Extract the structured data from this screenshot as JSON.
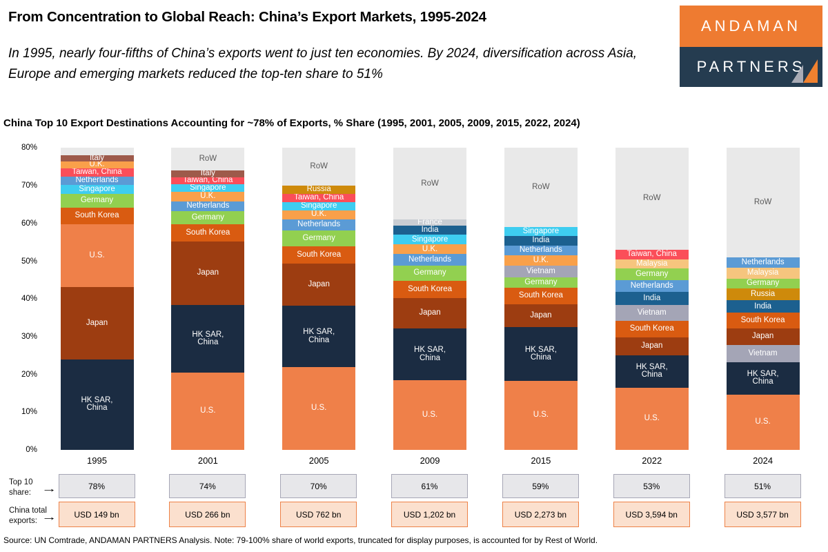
{
  "header": {
    "title": "From Concentration to Global Reach: China’s Export Markets, 1995-2024",
    "subtitle": "In 1995, nearly four-fifths of China’s exports went to just ten economies. By 2024, diversification across Asia, Europe and emerging markets reduced the top-ten share to 51%"
  },
  "logo": {
    "line1": "ANDAMAN",
    "line2": "PARTNERS"
  },
  "chart_title": "China Top 10 Export Destinations Accounting for ~78% of Exports, % Share (1995, 2001, 2005, 2009, 2015, 2022, 2024)",
  "annotations": {
    "top10_label": "Top 10\nshare:",
    "exports_label": "China total\nexports:",
    "arrow": "→"
  },
  "source": "Source: UN Comtrade, ANDAMAN PARTNERS Analysis. Note: 79-100% share of world exports, truncated for display purposes, is accounted for by Rest of World.",
  "chart_data": {
    "type": "stacked_bar",
    "title": "China Top 10 Export Destinations Accounting for ~78% of Exports, % Share (1995, 2001, 2005, 2009, 2015, 2022, 2024)",
    "unit": "% share of China total exports",
    "ylim": [
      0,
      80
    ],
    "yticks": [
      "0%",
      "10%",
      "20%",
      "30%",
      "40%",
      "50%",
      "60%",
      "70%",
      "80%"
    ],
    "truncated_at": 80,
    "grid": false,
    "stack_order": "bottom_to_top",
    "colors": {
      "U.S.": {
        "fill": "#EF8049",
        "text": "#FFFFFF"
      },
      "HK SAR, China": {
        "fill": "#1B2C42",
        "text": "#FFFFFF"
      },
      "Japan": {
        "fill": "#9D3D11",
        "text": "#FFFFFF"
      },
      "South Korea": {
        "fill": "#D95B11",
        "text": "#FFFFFF"
      },
      "Germany": {
        "fill": "#92D050",
        "text": "#FFFFFF"
      },
      "Singapore": {
        "fill": "#3ECDF0",
        "text": "#FFFFFF"
      },
      "Netherlands": {
        "fill": "#5B9BD5",
        "text": "#FFFFFF"
      },
      "Taiwan, China": {
        "fill": "#FB4E59",
        "text": "#FFFFFF"
      },
      "U.K.": {
        "fill": "#F9A04A",
        "text": "#FFFFFF"
      },
      "Italy": {
        "fill": "#9E5A4A",
        "text": "#FFFFFF"
      },
      "Russia": {
        "fill": "#CE8A0B",
        "text": "#FFFFFF"
      },
      "India": {
        "fill": "#1C608F",
        "text": "#FFFFFF"
      },
      "France": {
        "fill": "#C9CDD3",
        "text": "#FFFFFF"
      },
      "Vietnam": {
        "fill": "#A4A5B6",
        "text": "#FFFFFF"
      },
      "Malaysia": {
        "fill": "#F6C57E",
        "text": "#FFFFFF"
      },
      "RoW": {
        "fill": "#E9E9E9",
        "text": "#595959"
      }
    },
    "years": [
      {
        "year": "1995",
        "top10_share": "78%",
        "china_total_exports": "USD 149 bn",
        "stack": [
          {
            "market": "HK SAR, China",
            "share": 24.0,
            "label": "HK SAR,\nChina"
          },
          {
            "market": "Japan",
            "share": 19.1
          },
          {
            "market": "U.S.",
            "share": 16.6
          },
          {
            "market": "South Korea",
            "share": 4.5
          },
          {
            "market": "Germany",
            "share": 3.7
          },
          {
            "market": "Singapore",
            "share": 2.3
          },
          {
            "market": "Netherlands",
            "share": 2.2
          },
          {
            "market": "Taiwan, China",
            "share": 2.2
          },
          {
            "market": "U.K.",
            "share": 1.9
          },
          {
            "market": "Italy",
            "share": 1.5
          },
          {
            "market": "RoW",
            "share": 2.0,
            "label": ""
          }
        ]
      },
      {
        "year": "2001",
        "top10_share": "74%",
        "china_total_exports": "USD 266 bn",
        "stack": [
          {
            "market": "U.S.",
            "share": 20.4
          },
          {
            "market": "HK SAR, China",
            "share": 18.0,
            "label": "HK SAR,\nChina"
          },
          {
            "market": "Japan",
            "share": 16.8
          },
          {
            "market": "South Korea",
            "share": 4.6
          },
          {
            "market": "Germany",
            "share": 3.5
          },
          {
            "market": "Netherlands",
            "share": 2.6
          },
          {
            "market": "U.K.",
            "share": 2.4
          },
          {
            "market": "Singapore",
            "share": 2.1
          },
          {
            "market": "Taiwan, China",
            "share": 1.9
          },
          {
            "market": "Italy",
            "share": 1.7
          },
          {
            "market": "RoW",
            "share": 6.0
          }
        ]
      },
      {
        "year": "2005",
        "top10_share": "70%",
        "china_total_exports": "USD 762 bn",
        "stack": [
          {
            "market": "U.S.",
            "share": 21.9
          },
          {
            "market": "HK SAR, China",
            "share": 16.3,
            "label": "HK SAR,\nChina"
          },
          {
            "market": "Japan",
            "share": 11.1
          },
          {
            "market": "South Korea",
            "share": 4.6
          },
          {
            "market": "Germany",
            "share": 4.2
          },
          {
            "market": "Netherlands",
            "share": 3.0
          },
          {
            "market": "U.K.",
            "share": 2.4
          },
          {
            "market": "Singapore",
            "share": 2.2
          },
          {
            "market": "Taiwan, China",
            "share": 2.2
          },
          {
            "market": "Russia",
            "share": 2.1
          },
          {
            "market": "RoW",
            "share": 10.0
          }
        ]
      },
      {
        "year": "2009",
        "top10_share": "61%",
        "china_total_exports": "USD 1,202 bn",
        "stack": [
          {
            "market": "U.S.",
            "share": 18.4
          },
          {
            "market": "HK SAR, China",
            "share": 13.8,
            "label": "HK SAR,\nChina"
          },
          {
            "market": "Japan",
            "share": 8.0
          },
          {
            "market": "South Korea",
            "share": 4.6
          },
          {
            "market": "Germany",
            "share": 4.1
          },
          {
            "market": "Netherlands",
            "share": 3.0
          },
          {
            "market": "U.K.",
            "share": 2.5
          },
          {
            "market": "Singapore",
            "share": 2.6
          },
          {
            "market": "India",
            "share": 2.4
          },
          {
            "market": "France",
            "share": 1.6
          },
          {
            "market": "RoW",
            "share": 19.0
          }
        ]
      },
      {
        "year": "2015",
        "top10_share": "59%",
        "china_total_exports": "USD 2,273 bn",
        "stack": [
          {
            "market": "U.S.",
            "share": 18.2
          },
          {
            "market": "HK SAR, China",
            "share": 14.4,
            "label": "HK SAR,\nChina"
          },
          {
            "market": "Japan",
            "share": 6.0
          },
          {
            "market": "South Korea",
            "share": 4.3
          },
          {
            "market": "Germany",
            "share": 2.8
          },
          {
            "market": "Vietnam",
            "share": 3.1
          },
          {
            "market": "U.K.",
            "share": 2.8
          },
          {
            "market": "Netherlands",
            "share": 2.6
          },
          {
            "market": "India",
            "share": 2.5
          },
          {
            "market": "Singapore",
            "share": 2.3
          },
          {
            "market": "RoW",
            "share": 21.0
          }
        ]
      },
      {
        "year": "2022",
        "top10_share": "53%",
        "china_total_exports": "USD 3,594 bn",
        "stack": [
          {
            "market": "U.S.",
            "share": 16.4
          },
          {
            "market": "HK SAR, China",
            "share": 8.7,
            "label": "HK SAR,\nChina"
          },
          {
            "market": "Japan",
            "share": 4.7
          },
          {
            "market": "South Korea",
            "share": 4.4
          },
          {
            "market": "Vietnam",
            "share": 4.2
          },
          {
            "market": "India",
            "share": 3.4
          },
          {
            "market": "Netherlands",
            "share": 3.2
          },
          {
            "market": "Germany",
            "share": 3.0
          },
          {
            "market": "Malaysia",
            "share": 2.5
          },
          {
            "market": "Taiwan, China",
            "share": 2.5
          },
          {
            "market": "RoW",
            "share": 27.0
          }
        ]
      },
      {
        "year": "2024",
        "top10_share": "51%",
        "china_total_exports": "USD 3,577 bn",
        "stack": [
          {
            "market": "U.S.",
            "share": 14.7
          },
          {
            "market": "HK SAR, China",
            "share": 8.5,
            "label": "HK SAR,\nChina"
          },
          {
            "market": "Vietnam",
            "share": 4.6
          },
          {
            "market": "Japan",
            "share": 4.4
          },
          {
            "market": "South Korea",
            "share": 4.1
          },
          {
            "market": "India",
            "share": 3.3
          },
          {
            "market": "Russia",
            "share": 3.1
          },
          {
            "market": "Germany",
            "share": 2.7
          },
          {
            "market": "Malaysia",
            "share": 2.9
          },
          {
            "market": "Netherlands",
            "share": 2.7
          },
          {
            "market": "RoW",
            "share": 29.0
          }
        ]
      }
    ]
  }
}
